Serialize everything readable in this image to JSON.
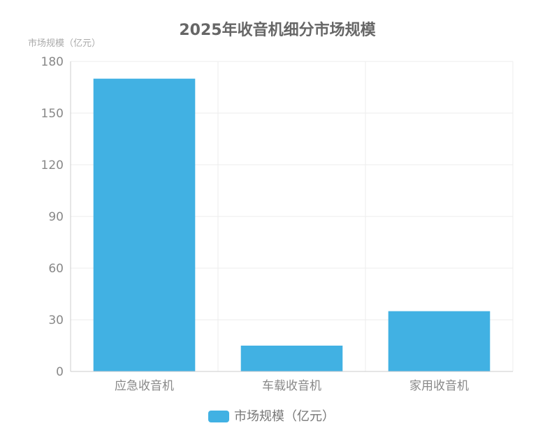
{
  "chart_data": {
    "type": "bar",
    "title": "2025年收音机细分市场规模",
    "y_unit_label": "市场规模（亿元）",
    "categories": [
      "应急收音机",
      "车载收音机",
      "家用收音机"
    ],
    "series": [
      {
        "name": "市场规模（亿元）",
        "values": [
          170,
          15,
          35
        ],
        "color": "#41b1e3"
      }
    ],
    "ylim": [
      0,
      180
    ],
    "yticks": [
      0,
      30,
      60,
      90,
      120,
      150,
      180
    ],
    "grid": true,
    "legend_position": "bottom-center"
  }
}
